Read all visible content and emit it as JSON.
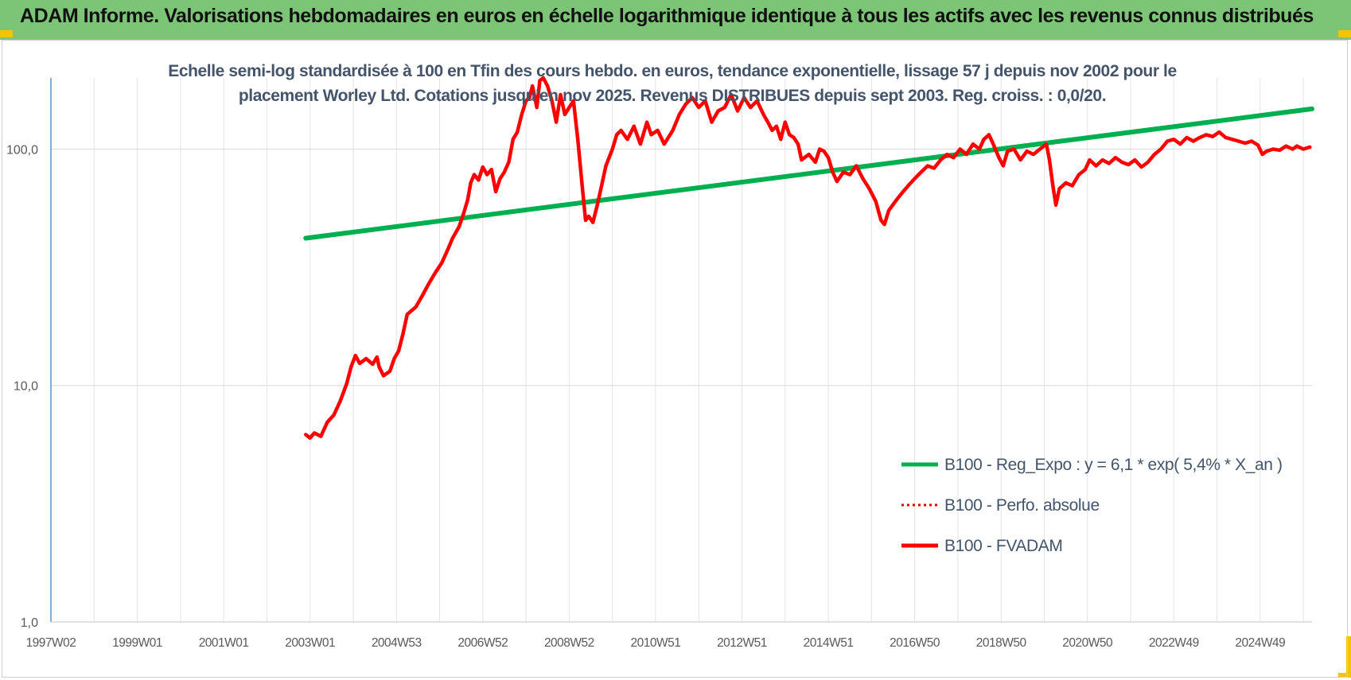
{
  "banner": {
    "title": "ADAM Informe. Valorisations hebdomadaires en euros en échelle logarithmique identique à tous les actifs avec les revenus connus distribués",
    "color": "#7cc576",
    "corner_color": "#f5c400"
  },
  "chart_data": {
    "type": "line",
    "title_lines": [
      "Echelle semi-log standardisée à 100 en Tfin des cours hebdo. en euros, tendance exponentielle, lissage 57 j depuis nov 2002 pour le",
      "placement Worley Ltd. Cotations jusqu'en nov 2025. Revenus DISTRIBUES depuis sept 2003. Reg. croiss. : 0,0/20."
    ],
    "y_scale": "log",
    "ylim": [
      1,
      200
    ],
    "y_ticks": [
      {
        "value": 1,
        "label": "1,0"
      },
      {
        "value": 10,
        "label": "10,0"
      },
      {
        "value": 100,
        "label": "100,0"
      }
    ],
    "x_range": [
      1997.0,
      2026.2
    ],
    "x_ticks": [
      {
        "value": 1997.0,
        "label": "1997W02"
      },
      {
        "value": 1999.0,
        "label": "1999W01"
      },
      {
        "value": 2001.0,
        "label": "2001W01"
      },
      {
        "value": 2003.0,
        "label": "2003W01"
      },
      {
        "value": 2005.0,
        "label": "2004W53"
      },
      {
        "value": 2007.0,
        "label": "2006W52"
      },
      {
        "value": 2009.0,
        "label": "2008W52"
      },
      {
        "value": 2011.0,
        "label": "2010W51"
      },
      {
        "value": 2013.0,
        "label": "2012W51"
      },
      {
        "value": 2015.0,
        "label": "2014W51"
      },
      {
        "value": 2017.0,
        "label": "2016W50"
      },
      {
        "value": 2019.0,
        "label": "2018W50"
      },
      {
        "value": 2021.0,
        "label": "2020W50"
      },
      {
        "value": 2023.0,
        "label": "2022W49"
      },
      {
        "value": 2025.0,
        "label": "2024W49"
      }
    ],
    "grid": true,
    "legend_position": "bottom-right",
    "series": [
      {
        "name": "B100 - Reg_Expo : y = 6,1 * exp( 5,4% *  X_an )",
        "color": "#00b050",
        "style": "solid",
        "points": [
          [
            2002.9,
            42
          ],
          [
            2026.2,
            148
          ]
        ]
      },
      {
        "name": "B100 - Perfo. absolue",
        "color": "#e00000",
        "style": "dotted",
        "points": []
      },
      {
        "name": "B100 - FVADAM",
        "color": "#ff0000",
        "style": "solid",
        "points": [
          [
            2002.9,
            6.2
          ],
          [
            2003.0,
            6.0
          ],
          [
            2003.1,
            6.3
          ],
          [
            2003.25,
            6.1
          ],
          [
            2003.4,
            7.0
          ],
          [
            2003.55,
            7.5
          ],
          [
            2003.7,
            8.6
          ],
          [
            2003.85,
            10.2
          ],
          [
            2003.95,
            12.0
          ],
          [
            2004.05,
            13.4
          ],
          [
            2004.15,
            12.4
          ],
          [
            2004.3,
            13.0
          ],
          [
            2004.45,
            12.3
          ],
          [
            2004.55,
            13.2
          ],
          [
            2004.6,
            12.0
          ],
          [
            2004.7,
            11.0
          ],
          [
            2004.85,
            11.5
          ],
          [
            2004.95,
            13.0
          ],
          [
            2005.05,
            14.0
          ],
          [
            2005.15,
            16.5
          ],
          [
            2005.25,
            20.0
          ],
          [
            2005.45,
            21.5
          ],
          [
            2005.6,
            24.0
          ],
          [
            2005.75,
            27.0
          ],
          [
            2005.9,
            30.0
          ],
          [
            2006.05,
            33.0
          ],
          [
            2006.2,
            38.0
          ],
          [
            2006.3,
            42.0
          ],
          [
            2006.45,
            47.0
          ],
          [
            2006.55,
            53.0
          ],
          [
            2006.65,
            61.0
          ],
          [
            2006.72,
            72.0
          ],
          [
            2006.8,
            78.0
          ],
          [
            2006.9,
            74.0
          ],
          [
            2007.0,
            84.0
          ],
          [
            2007.1,
            78.0
          ],
          [
            2007.2,
            82.0
          ],
          [
            2007.3,
            66.0
          ],
          [
            2007.4,
            75.0
          ],
          [
            2007.5,
            80.0
          ],
          [
            2007.6,
            88.0
          ],
          [
            2007.7,
            110.0
          ],
          [
            2007.8,
            118.0
          ],
          [
            2007.9,
            140.0
          ],
          [
            2008.0,
            160.0
          ],
          [
            2008.08,
            165.0
          ],
          [
            2008.15,
            185.0
          ],
          [
            2008.25,
            150.0
          ],
          [
            2008.32,
            195.0
          ],
          [
            2008.4,
            200.0
          ],
          [
            2008.5,
            185.0
          ],
          [
            2008.6,
            160.0
          ],
          [
            2008.7,
            130.0
          ],
          [
            2008.8,
            170.0
          ],
          [
            2008.9,
            140.0
          ],
          [
            2009.0,
            150.0
          ],
          [
            2009.1,
            160.0
          ],
          [
            2009.2,
            110.0
          ],
          [
            2009.3,
            70.0
          ],
          [
            2009.38,
            50.0
          ],
          [
            2009.45,
            52.0
          ],
          [
            2009.55,
            49.0
          ],
          [
            2009.65,
            58.0
          ],
          [
            2009.75,
            70.0
          ],
          [
            2009.85,
            85.0
          ],
          [
            2010.0,
            100.0
          ],
          [
            2010.1,
            115.0
          ],
          [
            2010.2,
            120.0
          ],
          [
            2010.35,
            110.0
          ],
          [
            2010.5,
            125.0
          ],
          [
            2010.65,
            105.0
          ],
          [
            2010.8,
            130.0
          ],
          [
            2010.9,
            115.0
          ],
          [
            2011.05,
            120.0
          ],
          [
            2011.2,
            105.0
          ],
          [
            2011.4,
            120.0
          ],
          [
            2011.55,
            140.0
          ],
          [
            2011.7,
            155.0
          ],
          [
            2011.85,
            165.0
          ],
          [
            2012.0,
            150.0
          ],
          [
            2012.15,
            160.0
          ],
          [
            2012.3,
            130.0
          ],
          [
            2012.45,
            145.0
          ],
          [
            2012.6,
            150.0
          ],
          [
            2012.75,
            170.0
          ],
          [
            2012.9,
            145.0
          ],
          [
            2013.05,
            165.0
          ],
          [
            2013.2,
            150.0
          ],
          [
            2013.35,
            160.0
          ],
          [
            2013.5,
            140.0
          ],
          [
            2013.6,
            130.0
          ],
          [
            2013.7,
            120.0
          ],
          [
            2013.8,
            125.0
          ],
          [
            2013.9,
            110.0
          ],
          [
            2014.0,
            130.0
          ],
          [
            2014.1,
            115.0
          ],
          [
            2014.2,
            112.0
          ],
          [
            2014.3,
            105.0
          ],
          [
            2014.38,
            90.0
          ],
          [
            2014.45,
            92.0
          ],
          [
            2014.55,
            95.0
          ],
          [
            2014.7,
            88.0
          ],
          [
            2014.8,
            100.0
          ],
          [
            2014.9,
            98.0
          ],
          [
            2015.0,
            92.0
          ],
          [
            2015.1,
            80.0
          ],
          [
            2015.2,
            73.0
          ],
          [
            2015.35,
            80.0
          ],
          [
            2015.5,
            78.0
          ],
          [
            2015.65,
            85.0
          ],
          [
            2015.8,
            75.0
          ],
          [
            2015.95,
            68.0
          ],
          [
            2016.1,
            60.0
          ],
          [
            2016.22,
            50.0
          ],
          [
            2016.3,
            48.0
          ],
          [
            2016.4,
            55.0
          ],
          [
            2016.55,
            60.0
          ],
          [
            2016.7,
            65.0
          ],
          [
            2016.85,
            70.0
          ],
          [
            2017.0,
            75.0
          ],
          [
            2017.15,
            80.0
          ],
          [
            2017.3,
            85.0
          ],
          [
            2017.45,
            83.0
          ],
          [
            2017.6,
            90.0
          ],
          [
            2017.75,
            95.0
          ],
          [
            2017.9,
            92.0
          ],
          [
            2018.05,
            100.0
          ],
          [
            2018.2,
            95.0
          ],
          [
            2018.35,
            105.0
          ],
          [
            2018.5,
            100.0
          ],
          [
            2018.6,
            110.0
          ],
          [
            2018.72,
            115.0
          ],
          [
            2018.82,
            105.0
          ],
          [
            2018.95,
            92.0
          ],
          [
            2019.05,
            85.0
          ],
          [
            2019.15,
            98.0
          ],
          [
            2019.3,
            100.0
          ],
          [
            2019.45,
            90.0
          ],
          [
            2019.6,
            98.0
          ],
          [
            2019.75,
            95.0
          ],
          [
            2019.9,
            100.0
          ],
          [
            2020.05,
            105.0
          ],
          [
            2020.12,
            90.0
          ],
          [
            2020.2,
            70.0
          ],
          [
            2020.27,
            58.0
          ],
          [
            2020.35,
            68.0
          ],
          [
            2020.5,
            72.0
          ],
          [
            2020.65,
            70.0
          ],
          [
            2020.8,
            78.0
          ],
          [
            2020.95,
            82.0
          ],
          [
            2021.05,
            90.0
          ],
          [
            2021.2,
            85.0
          ],
          [
            2021.35,
            90.0
          ],
          [
            2021.5,
            87.0
          ],
          [
            2021.65,
            92.0
          ],
          [
            2021.8,
            88.0
          ],
          [
            2021.95,
            86.0
          ],
          [
            2022.1,
            90.0
          ],
          [
            2022.25,
            84.0
          ],
          [
            2022.4,
            88.0
          ],
          [
            2022.55,
            95.0
          ],
          [
            2022.7,
            100.0
          ],
          [
            2022.85,
            108.0
          ],
          [
            2023.0,
            110.0
          ],
          [
            2023.15,
            105.0
          ],
          [
            2023.3,
            112.0
          ],
          [
            2023.45,
            108.0
          ],
          [
            2023.6,
            112.0
          ],
          [
            2023.75,
            115.0
          ],
          [
            2023.9,
            113.0
          ],
          [
            2024.05,
            118.0
          ],
          [
            2024.2,
            112.0
          ],
          [
            2024.35,
            110.0
          ],
          [
            2024.5,
            108.0
          ],
          [
            2024.65,
            106.0
          ],
          [
            2024.8,
            108.0
          ],
          [
            2024.95,
            104.0
          ],
          [
            2025.05,
            95.0
          ],
          [
            2025.15,
            98.0
          ],
          [
            2025.3,
            100.0
          ],
          [
            2025.45,
            99.0
          ],
          [
            2025.6,
            103.0
          ],
          [
            2025.75,
            100.0
          ],
          [
            2025.85,
            103.0
          ],
          [
            2026.0,
            100.0
          ],
          [
            2026.15,
            102.0
          ]
        ]
      }
    ]
  }
}
